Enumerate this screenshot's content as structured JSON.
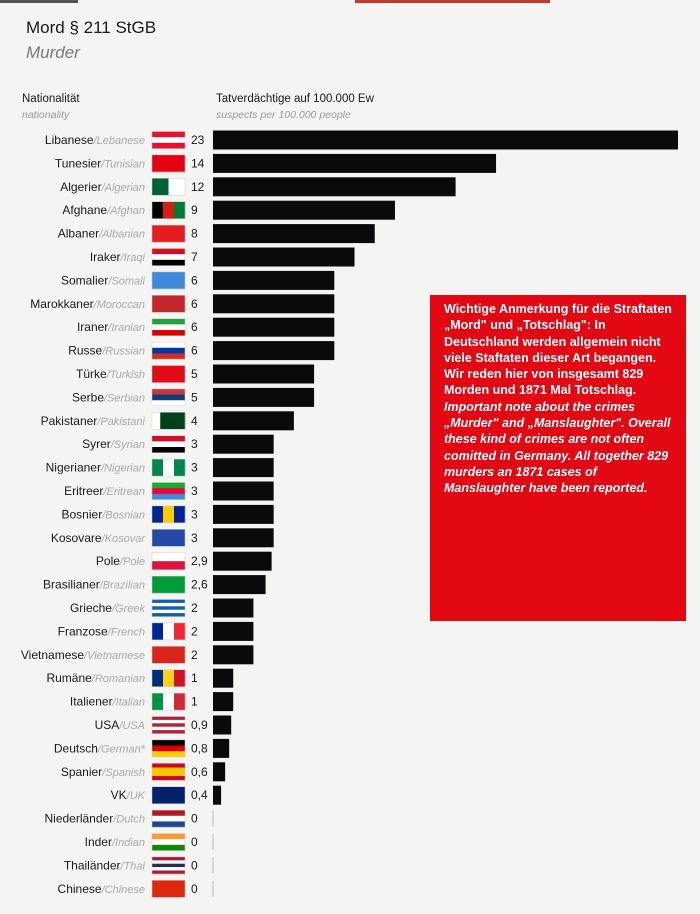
{
  "header": {
    "title": "Mord § 211 StGB",
    "subtitle": "Murder"
  },
  "columns": {
    "nat_de": "Nationalität",
    "nat_en": "nationality",
    "val_de": "Tatverdächtige auf 100.000 Ew",
    "val_en": "suspects per 100.000 people"
  },
  "note": {
    "de": "Wichtige Anmerkung für die Straftaten „Mord\" und „Totschlag\": In Deutschland werden allgemein nicht viele Staftaten dieser Art begangen. Wir reden hier von insgesamt 829 Morden und 1871 Mal Totschlag.",
    "en": "Important note about the crimes „Murder\" and „Manslaughter\". Overall these kind of crimes are not often comitted in Germany. All together 829 murders an 1871 cases of Manslaughter have been reported."
  },
  "colors": {
    "bar": "#0a0a0a",
    "note_bg": "#e30613",
    "note_text": "#ffffff"
  },
  "chart_data": {
    "type": "bar",
    "orientation": "horizontal",
    "xlim": [
      0,
      23
    ],
    "categories": [
      "Libanese",
      "Tunesier",
      "Algerier",
      "Afghane",
      "Albaner",
      "Iraker",
      "Somalier",
      "Marokkaner",
      "Iraner",
      "Russe",
      "Türke",
      "Serbe",
      "Pakistaner",
      "Syrer",
      "Nigerianer",
      "Eritreer",
      "Bosnier",
      "Kosovare",
      "Pole",
      "Brasilianer",
      "Grieche",
      "Franzose",
      "Vietnamese",
      "Rumäne",
      "Italiener",
      "USA",
      "Deutsch",
      "Spanier",
      "VK",
      "Niederländer",
      "Inder",
      "Thailänder",
      "Chinese"
    ],
    "categories_en": [
      "Lebanese",
      "Tunisian",
      "Algerian",
      "Afghan",
      "Albanian",
      "Iraqi",
      "Somali",
      "Moroccan",
      "Iranian",
      "Russian",
      "Turkish",
      "Serbian",
      "Pakistani",
      "Syrian",
      "Nigerian",
      "Eritrean",
      "Bosnian",
      "Kosovar",
      "Pole",
      "Brazilian",
      "Greek",
      "French",
      "Vietnamese",
      "Romanian",
      "Italian",
      "USA",
      "German*",
      "Spanish",
      "UK",
      "Dutch",
      "Indian",
      "Thai",
      "Chinese"
    ],
    "values": [
      23,
      14,
      12,
      9,
      8,
      7,
      6,
      6,
      6,
      6,
      5,
      5,
      4,
      3,
      3,
      3,
      3,
      3,
      2.9,
      2.6,
      2,
      2,
      2,
      1,
      1,
      0.9,
      0.8,
      0.6,
      0.4,
      0,
      0,
      0,
      0
    ],
    "labels": [
      "23",
      "14",
      "12",
      "9",
      "8",
      "7",
      "6",
      "6",
      "6",
      "6",
      "5",
      "5",
      "4",
      "3",
      "3",
      "3",
      "3",
      "3",
      "2,9",
      "2,6",
      "2",
      "2",
      "2",
      "1",
      "1",
      "0,9",
      "0,8",
      "0,6",
      "0,4",
      "0",
      "0",
      "0",
      "0"
    ],
    "flags": [
      {
        "icon": "flag-lebanon",
        "colors": [
          "#e8112d",
          "#ffffff",
          "#e8112d"
        ],
        "dir": "h"
      },
      {
        "icon": "flag-tunisia",
        "colors": [
          "#e70013"
        ],
        "dir": "h"
      },
      {
        "icon": "flag-algeria",
        "colors": [
          "#006233",
          "#ffffff"
        ],
        "dir": "v"
      },
      {
        "icon": "flag-afghanistan",
        "colors": [
          "#000000",
          "#d32011",
          "#007a36"
        ],
        "dir": "v"
      },
      {
        "icon": "flag-albania",
        "colors": [
          "#e41e20"
        ],
        "dir": "h"
      },
      {
        "icon": "flag-iraq",
        "colors": [
          "#ce1126",
          "#ffffff",
          "#000000"
        ],
        "dir": "h"
      },
      {
        "icon": "flag-somalia",
        "colors": [
          "#4189dd"
        ],
        "dir": "h"
      },
      {
        "icon": "flag-morocco",
        "colors": [
          "#c1272d"
        ],
        "dir": "h"
      },
      {
        "icon": "flag-iran",
        "colors": [
          "#239f40",
          "#ffffff",
          "#da0000"
        ],
        "dir": "h"
      },
      {
        "icon": "flag-russia",
        "colors": [
          "#ffffff",
          "#0039a6",
          "#d52b1e"
        ],
        "dir": "h"
      },
      {
        "icon": "flag-turkey",
        "colors": [
          "#e30a17"
        ],
        "dir": "h"
      },
      {
        "icon": "flag-serbia",
        "colors": [
          "#c6363c",
          "#0c4076",
          "#ffffff"
        ],
        "dir": "h"
      },
      {
        "icon": "flag-pakistan",
        "colors": [
          "#ffffff",
          "#01411c",
          "#01411c",
          "#01411c"
        ],
        "dir": "v"
      },
      {
        "icon": "flag-syria",
        "colors": [
          "#ce1126",
          "#ffffff",
          "#000000"
        ],
        "dir": "h"
      },
      {
        "icon": "flag-nigeria",
        "colors": [
          "#008751",
          "#ffffff",
          "#008751"
        ],
        "dir": "v"
      },
      {
        "icon": "flag-eritrea",
        "colors": [
          "#12ad2b",
          "#ea0437",
          "#4189dd"
        ],
        "dir": "h"
      },
      {
        "icon": "flag-bosnia",
        "colors": [
          "#002395",
          "#fecb00",
          "#002395"
        ],
        "dir": "v"
      },
      {
        "icon": "flag-kosovo",
        "colors": [
          "#244aa5"
        ],
        "dir": "h"
      },
      {
        "icon": "flag-poland",
        "colors": [
          "#ffffff",
          "#dc143c"
        ],
        "dir": "h"
      },
      {
        "icon": "flag-brazil",
        "colors": [
          "#009c3b"
        ],
        "dir": "h"
      },
      {
        "icon": "flag-greece",
        "colors": [
          "#0d5eaf",
          "#ffffff",
          "#0d5eaf",
          "#ffffff",
          "#0d5eaf"
        ],
        "dir": "h"
      },
      {
        "icon": "flag-france",
        "colors": [
          "#002395",
          "#ffffff",
          "#ed2939"
        ],
        "dir": "v"
      },
      {
        "icon": "flag-vietnam",
        "colors": [
          "#da251d"
        ],
        "dir": "h"
      },
      {
        "icon": "flag-romania",
        "colors": [
          "#002b7f",
          "#fcd116",
          "#ce1126"
        ],
        "dir": "v"
      },
      {
        "icon": "flag-italy",
        "colors": [
          "#009246",
          "#ffffff",
          "#ce2b37"
        ],
        "dir": "v"
      },
      {
        "icon": "flag-usa",
        "colors": [
          "#b22234",
          "#ffffff",
          "#b22234",
          "#ffffff",
          "#b22234"
        ],
        "dir": "h"
      },
      {
        "icon": "flag-germany",
        "colors": [
          "#000000",
          "#dd0000",
          "#ffce00"
        ],
        "dir": "h"
      },
      {
        "icon": "flag-spain",
        "colors": [
          "#c60b1e",
          "#ffc400",
          "#ffc400",
          "#c60b1e"
        ],
        "dir": "h"
      },
      {
        "icon": "flag-uk",
        "colors": [
          "#012169"
        ],
        "dir": "h"
      },
      {
        "icon": "flag-netherlands",
        "colors": [
          "#ae1c28",
          "#ffffff",
          "#21468b"
        ],
        "dir": "h"
      },
      {
        "icon": "flag-india",
        "colors": [
          "#ff9933",
          "#ffffff",
          "#138808"
        ],
        "dir": "h"
      },
      {
        "icon": "flag-thailand",
        "colors": [
          "#a51931",
          "#ffffff",
          "#2d2a4a",
          "#ffffff",
          "#a51931"
        ],
        "dir": "h"
      },
      {
        "icon": "flag-china",
        "colors": [
          "#de2910"
        ],
        "dir": "h"
      }
    ]
  }
}
